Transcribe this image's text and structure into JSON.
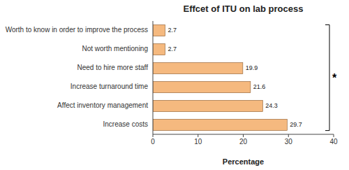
{
  "chart_data": {
    "type": "bar",
    "orientation": "horizontal",
    "title": "Effcet of ITU on lab process",
    "categories": [
      "Increase costs",
      "Affect inventory management",
      "Increase turnaround time",
      "Need to hire more staff",
      "Not worth mentioning",
      "Worth to know in order to improve the process"
    ],
    "values": [
      29.7,
      24.3,
      21.6,
      19.9,
      2.7,
      2.7
    ],
    "color": "#F5B97F",
    "xlabel": "Percentage",
    "xlim": [
      0,
      40
    ],
    "xticks": [
      0,
      10,
      20,
      30,
      40
    ],
    "data_labels": true,
    "annotations": [
      "*"
    ]
  }
}
